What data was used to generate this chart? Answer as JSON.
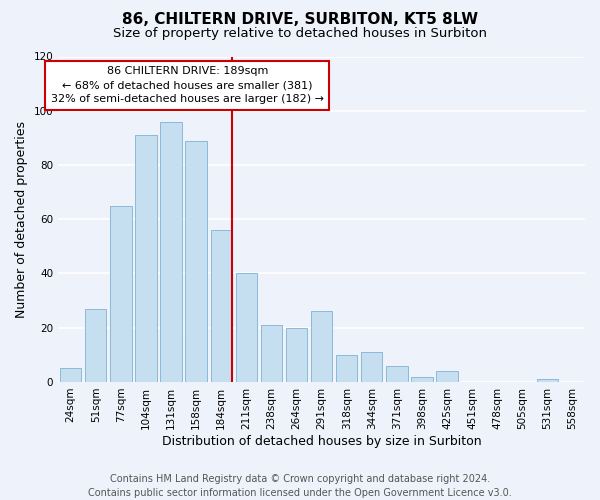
{
  "title": "86, CHILTERN DRIVE, SURBITON, KT5 8LW",
  "subtitle": "Size of property relative to detached houses in Surbiton",
  "xlabel": "Distribution of detached houses by size in Surbiton",
  "ylabel": "Number of detached properties",
  "bar_labels": [
    "24sqm",
    "51sqm",
    "77sqm",
    "104sqm",
    "131sqm",
    "158sqm",
    "184sqm",
    "211sqm",
    "238sqm",
    "264sqm",
    "291sqm",
    "318sqm",
    "344sqm",
    "371sqm",
    "398sqm",
    "425sqm",
    "451sqm",
    "478sqm",
    "505sqm",
    "531sqm",
    "558sqm"
  ],
  "bar_values": [
    5,
    27,
    65,
    91,
    96,
    89,
    56,
    40,
    21,
    20,
    26,
    10,
    11,
    6,
    2,
    4,
    0,
    0,
    0,
    1,
    0
  ],
  "bar_color": "#c6dff0",
  "bar_edge_color": "#8db8d8",
  "highlight_index": 6,
  "highlight_line_color": "#cc0000",
  "ylim": [
    0,
    120
  ],
  "yticks": [
    0,
    20,
    40,
    60,
    80,
    100,
    120
  ],
  "annotation_title": "86 CHILTERN DRIVE: 189sqm",
  "annotation_line1": "← 68% of detached houses are smaller (381)",
  "annotation_line2": "32% of semi-detached houses are larger (182) →",
  "annotation_box_color": "#ffffff",
  "annotation_box_edge_color": "#cc0000",
  "footer_line1": "Contains HM Land Registry data © Crown copyright and database right 2024.",
  "footer_line2": "Contains public sector information licensed under the Open Government Licence v3.0.",
  "background_color": "#eef2fa",
  "plot_bg_color": "#eef2fa",
  "grid_color": "#ffffff",
  "title_fontsize": 11,
  "subtitle_fontsize": 9.5,
  "axis_label_fontsize": 9,
  "tick_fontsize": 7.5,
  "annotation_fontsize": 8,
  "footer_fontsize": 7
}
